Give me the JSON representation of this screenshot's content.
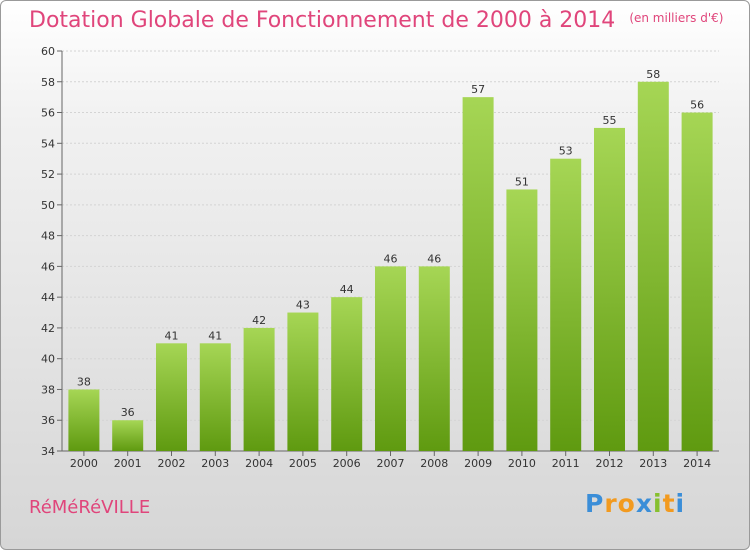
{
  "title": "Dotation Globale de Fonctionnement de 2000 à 2014",
  "unit": "(en milliers d'€)",
  "commune": "RéMéRéVILLE",
  "logo_text": "Proxiti",
  "colors": {
    "title": "#e0457b",
    "bar_light": "#a6d655",
    "bar_dark": "#5f9a10"
  },
  "chart_data": {
    "type": "bar",
    "title": "Dotation Globale de Fonctionnement de 2000 à 2014",
    "subtitle": "(en milliers d'€)",
    "xlabel": "",
    "ylabel": "",
    "categories": [
      "2000",
      "2001",
      "2002",
      "2003",
      "2004",
      "2005",
      "2006",
      "2007",
      "2008",
      "2009",
      "2010",
      "2011",
      "2012",
      "2013",
      "2014"
    ],
    "values": [
      38,
      36,
      41,
      41,
      42,
      43,
      44,
      46,
      46,
      57,
      51,
      53,
      55,
      58,
      56
    ],
    "ylim": [
      34,
      60
    ],
    "yticks": [
      34,
      36,
      38,
      40,
      42,
      44,
      46,
      48,
      50,
      52,
      54,
      56,
      58,
      60
    ],
    "grid": true,
    "legend": "none"
  }
}
